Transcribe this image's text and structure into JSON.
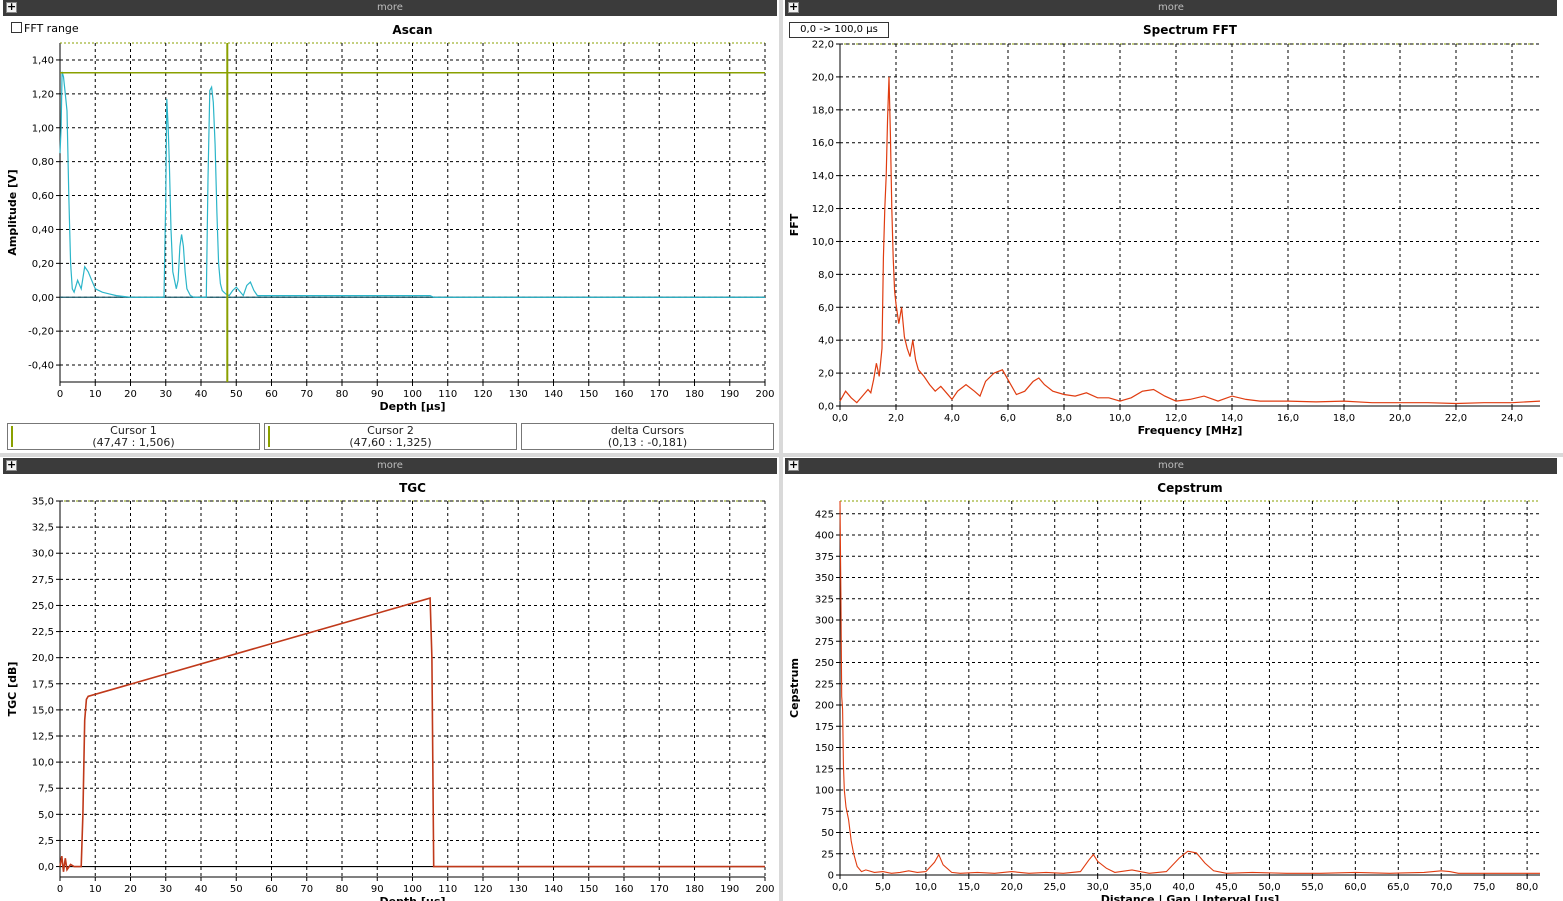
{
  "panels": {
    "ascan": {
      "title": "Ascan",
      "more_label": "more",
      "fft_range_label": "FFT range"
    },
    "fft": {
      "title": "Spectrum FFT",
      "more_label": "more",
      "range_label": "0,0 -> 100,0 µs"
    },
    "tgc": {
      "title": "TGC",
      "more_label": "more"
    },
    "cepstrum": {
      "title": "Cepstrum",
      "more_label": "more"
    }
  },
  "cursors": [
    {
      "label": "Cursor 1",
      "value": "(47,47 : 1,506)"
    },
    {
      "label": "Cursor 2",
      "value": "(47,60 : 1,325)"
    },
    {
      "label": "delta Cursors",
      "value": "(0,13 : -0,181)"
    }
  ],
  "colors": {
    "ascan_line": "#2bb5c9",
    "series": "#e03c10",
    "tgc_line": "#c0391a",
    "cursor": "#8aa000",
    "grid": "#000000"
  },
  "chart_data": [
    {
      "type": "line",
      "title": "Ascan",
      "xlabel": "Depth [µs]",
      "ylabel": "Amplitude [V]",
      "xlim": [
        0,
        200
      ],
      "ylim": [
        -0.5,
        1.5
      ],
      "xticks": [
        0,
        10,
        20,
        30,
        40,
        50,
        60,
        70,
        80,
        90,
        100,
        110,
        120,
        130,
        140,
        150,
        160,
        170,
        180,
        190,
        200
      ],
      "yticks": [
        "-0,40",
        "-0,20",
        "0,00",
        "0,20",
        "0,40",
        "0,60",
        "0,80",
        "1,00",
        "1,20",
        "1,40"
      ],
      "ytick_values": [
        -0.4,
        -0.2,
        0,
        0.2,
        0.4,
        0.6,
        0.8,
        1.0,
        1.2,
        1.4
      ],
      "grid": true,
      "series": [
        {
          "x": [
            0,
            0.3,
            0.6,
            1,
            1.5,
            2,
            2.5,
            3,
            3.5,
            4,
            5,
            6,
            7,
            8,
            9,
            10,
            12,
            14,
            16,
            20,
            25,
            29.5,
            30,
            30.3,
            30.7,
            31,
            31.5,
            32,
            33,
            33.5,
            34,
            34.5,
            35,
            35.5,
            36,
            37,
            38,
            41.5,
            42,
            42.5,
            43,
            43.5,
            44,
            44.5,
            45,
            45.5,
            46,
            47,
            48,
            49,
            50,
            52,
            53,
            54,
            55,
            56,
            60,
            70,
            80,
            90,
            100,
            105,
            106,
            110,
            200
          ],
          "y": [
            0.85,
            1.0,
            1.33,
            1.3,
            1.2,
            1.1,
            0.6,
            0.2,
            0.05,
            0.03,
            0.1,
            0.05,
            0.18,
            0.15,
            0.1,
            0.05,
            0.03,
            0.02,
            0.01,
            0.0,
            0.0,
            0.0,
            0.6,
            1.17,
            1.0,
            0.8,
            0.4,
            0.15,
            0.05,
            0.1,
            0.3,
            0.37,
            0.3,
            0.15,
            0.05,
            0.01,
            0.0,
            0.0,
            0.7,
            1.22,
            1.24,
            1.15,
            0.9,
            0.5,
            0.2,
            0.08,
            0.04,
            0.02,
            0.01,
            0.04,
            0.06,
            0.01,
            0.07,
            0.09,
            0.04,
            0.01,
            0.01,
            0.01,
            0.01,
            0.01,
            0.01,
            0.01,
            0.0,
            0.0,
            0.0
          ]
        },
        {
          "name": "Cursor 1",
          "x": [
            47.47,
            47.47
          ],
          "y": [
            -0.5,
            1.5
          ]
        },
        {
          "name": "Cursor 2",
          "x": [
            0,
            200
          ],
          "y": [
            1.325,
            1.325
          ]
        }
      ]
    },
    {
      "type": "line",
      "title": "Spectrum FFT",
      "xlabel": "Frequency [MHz]",
      "ylabel": "FFT",
      "xlim": [
        0,
        25
      ],
      "ylim": [
        0,
        22
      ],
      "xticks": [
        "0,0",
        "2,0",
        "4,0",
        "6,0",
        "8,0",
        "10,0",
        "12,0",
        "14,0",
        "16,0",
        "18,0",
        "20,0",
        "22,0",
        "24,0"
      ],
      "xtick_values": [
        0,
        2,
        4,
        6,
        8,
        10,
        12,
        14,
        16,
        18,
        20,
        22,
        24
      ],
      "yticks": [
        "0,0",
        "2,0",
        "4,0",
        "6,0",
        "8,0",
        "10,0",
        "12,0",
        "14,0",
        "16,0",
        "18,0",
        "20,0",
        "22,0"
      ],
      "ytick_values": [
        0,
        2,
        4,
        6,
        8,
        10,
        12,
        14,
        16,
        18,
        20,
        22
      ],
      "grid": true,
      "series": [
        {
          "x": [
            0,
            0.2,
            0.4,
            0.6,
            0.8,
            1.0,
            1.1,
            1.2,
            1.3,
            1.4,
            1.5,
            1.55,
            1.6,
            1.65,
            1.7,
            1.75,
            1.8,
            1.85,
            1.9,
            1.95,
            2.0,
            2.1,
            2.2,
            2.3,
            2.4,
            2.5,
            2.6,
            2.7,
            2.8,
            3.0,
            3.2,
            3.4,
            3.6,
            3.8,
            4.0,
            4.2,
            4.5,
            4.8,
            5.0,
            5.2,
            5.5,
            5.8,
            6.0,
            6.3,
            6.6,
            6.9,
            7.1,
            7.3,
            7.6,
            8.0,
            8.4,
            8.8,
            9.2,
            9.6,
            10.0,
            10.4,
            10.8,
            11.2,
            11.6,
            12.0,
            12.5,
            13.0,
            13.5,
            14.0,
            14.5,
            15.0,
            16.0,
            17.0,
            18.0,
            19.0,
            20.0,
            21.0,
            22.0,
            23.0,
            24.0,
            25.0
          ],
          "y": [
            0.3,
            0.9,
            0.5,
            0.2,
            0.6,
            1.0,
            0.8,
            1.6,
            2.6,
            1.8,
            3.5,
            9.0,
            12.0,
            14.0,
            17.5,
            20.0,
            16.5,
            12.0,
            9.0,
            7.0,
            6.2,
            5.0,
            6.0,
            4.2,
            3.5,
            3.0,
            4.0,
            2.8,
            2.2,
            1.8,
            1.3,
            0.9,
            1.2,
            0.8,
            0.4,
            0.9,
            1.3,
            0.9,
            0.6,
            1.5,
            2.0,
            2.2,
            1.6,
            0.7,
            0.9,
            1.5,
            1.7,
            1.3,
            0.9,
            0.7,
            0.6,
            0.8,
            0.5,
            0.5,
            0.3,
            0.5,
            0.9,
            1.0,
            0.6,
            0.3,
            0.4,
            0.6,
            0.3,
            0.6,
            0.4,
            0.3,
            0.3,
            0.25,
            0.3,
            0.2,
            0.2,
            0.2,
            0.15,
            0.2,
            0.2,
            0.3
          ]
        }
      ]
    },
    {
      "type": "line",
      "title": "TGC",
      "xlabel": "Depth [µs]",
      "ylabel": "TGC [dB]",
      "xlim": [
        0,
        200
      ],
      "ylim": [
        -1,
        35
      ],
      "xticks": [
        0,
        10,
        20,
        30,
        40,
        50,
        60,
        70,
        80,
        90,
        100,
        110,
        120,
        130,
        140,
        150,
        160,
        170,
        180,
        190,
        200
      ],
      "yticks": [
        "0,0",
        "2,5",
        "5,0",
        "7,5",
        "10,0",
        "12,5",
        "15,0",
        "17,5",
        "20,0",
        "22,5",
        "25,0",
        "27,5",
        "30,0",
        "32,5",
        "35,0"
      ],
      "ytick_values": [
        0,
        2.5,
        5,
        7.5,
        10,
        12.5,
        15,
        17.5,
        20,
        22.5,
        25,
        27.5,
        30,
        32.5,
        35
      ],
      "grid": true,
      "series": [
        {
          "x": [
            0,
            0.5,
            1,
            1.5,
            2,
            3,
            4,
            5,
            6,
            6.5,
            7,
            7.5,
            8,
            105,
            105.5,
            106,
            107,
            200
          ],
          "y": [
            0,
            1.0,
            -0.5,
            0.8,
            -0.3,
            0.2,
            0,
            0,
            0,
            5,
            14,
            16,
            16.3,
            25.7,
            20,
            0,
            0,
            0
          ]
        }
      ]
    },
    {
      "type": "line",
      "title": "Cepstrum",
      "xlabel": "Distance | Gap | Interval [µs]",
      "ylabel": "Cepstrum",
      "xlim": [
        0,
        81.5
      ],
      "ylim": [
        0,
        440
      ],
      "xticks": [
        "0,0",
        "5,0",
        "10,0",
        "15,0",
        "20,0",
        "25,0",
        "30,0",
        "35,0",
        "40,0",
        "45,0",
        "50,0",
        "55,0",
        "60,0",
        "65,0",
        "70,0",
        "75,0",
        "80,0"
      ],
      "xtick_values": [
        0,
        5,
        10,
        15,
        20,
        25,
        30,
        35,
        40,
        45,
        50,
        55,
        60,
        65,
        70,
        75,
        80
      ],
      "yticks": [
        0,
        25,
        50,
        75,
        100,
        125,
        150,
        175,
        200,
        225,
        250,
        275,
        300,
        325,
        350,
        375,
        400,
        425
      ],
      "grid": true,
      "series": [
        {
          "x": [
            0,
            0.1,
            0.2,
            0.3,
            0.4,
            0.5,
            0.7,
            1.0,
            1.3,
            1.6,
            2.0,
            2.5,
            3.0,
            4.0,
            5.0,
            6.0,
            7.0,
            8.0,
            9.0,
            10.0,
            11.0,
            11.5,
            12.0,
            13.0,
            14.0,
            16.0,
            18.0,
            20.0,
            22.0,
            24.0,
            26.0,
            28.0,
            29.0,
            29.5,
            30.0,
            31.0,
            32.0,
            34.0,
            36.0,
            38.0,
            39.5,
            40.5,
            41.5,
            42.5,
            43.5,
            45.0,
            48.0,
            52.0,
            56.0,
            60.0,
            64.0,
            68.0,
            70.0,
            71.0,
            72.0,
            76.0,
            80.0,
            81.5
          ],
          "y": [
            440,
            330,
            210,
            195,
            130,
            100,
            80,
            65,
            40,
            25,
            10,
            4,
            6,
            3,
            4,
            2,
            3,
            5,
            3,
            4,
            15,
            24,
            12,
            3,
            2,
            3,
            2,
            4,
            2,
            3,
            2,
            4,
            18,
            24,
            16,
            8,
            3,
            6,
            2,
            4,
            20,
            28,
            26,
            14,
            5,
            2,
            3,
            2,
            2,
            3,
            2,
            3,
            5,
            4,
            2,
            2,
            2,
            2
          ]
        }
      ]
    }
  ]
}
